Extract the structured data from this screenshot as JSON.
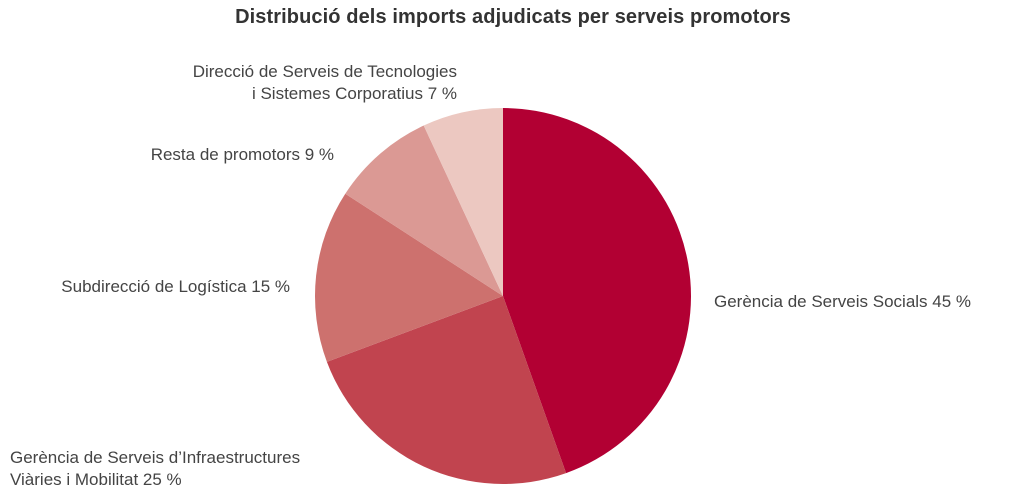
{
  "chart_data": {
    "type": "pie",
    "title": "Distribució dels imports adjudicats per serveis promotors",
    "slices": [
      {
        "label_lines": [
          "Gerència de Serveis Socials 45 %"
        ],
        "value": 45,
        "color": "#b20033"
      },
      {
        "label_lines": [
          "Gerència de Serveis d’Infraestructures",
          "Viàries i Mobilitat 25 %"
        ],
        "value": 25,
        "color": "#c1444f"
      },
      {
        "label_lines": [
          "Subdirecció de Logística 15 %"
        ],
        "value": 15,
        "color": "#cd716e"
      },
      {
        "label_lines": [
          "Resta de promotors 9 %"
        ],
        "value": 9,
        "color": "#db9994"
      },
      {
        "label_lines": [
          "Direcció de Serveis de Tecnologies",
          "i Sistemes Corporatius 7 %"
        ],
        "value": 7,
        "color": "#ecc8c1"
      }
    ],
    "start_angle": "top",
    "direction": "clockwise",
    "legend": "none"
  }
}
